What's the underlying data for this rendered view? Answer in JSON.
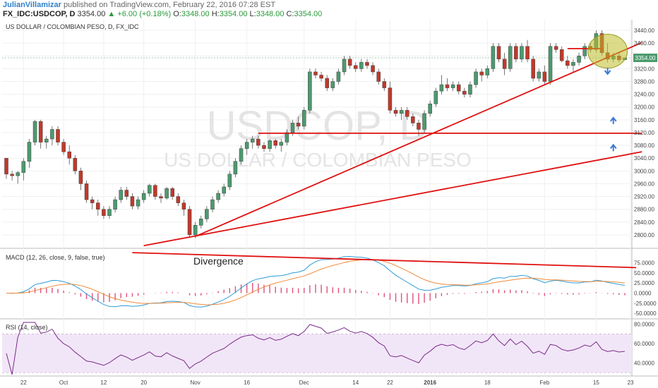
{
  "header": {
    "author": "JulianVillamizar",
    "published_text": "published on TradingView.com, February 22, 2016 07:28 EST",
    "symbol": "FX_IDC:USDCOP, D",
    "last": "3354.00",
    "change": "+6.00 (+0.18%)",
    "ohlc": [
      {
        "k": "O:",
        "v": "3348.00"
      },
      {
        "k": "H:",
        "v": "3354.00"
      },
      {
        "k": "L:",
        "v": "3348.00"
      },
      {
        "k": "C:",
        "v": "3354.00"
      }
    ]
  },
  "chart_data": {
    "type": "candlestick",
    "title": "US DOLLAR / COLOMBIAN PESO, D, FX_IDC",
    "watermark_symbol": "USDCOP, D",
    "watermark_name": "US DOLLAR / COLOMBIAN PESO",
    "last_price_label": "3354.00",
    "price_axis": {
      "min": 2760,
      "max": 3460,
      "ticks": [
        2800,
        2840,
        2880,
        2920,
        2960,
        3000,
        3040,
        3080,
        3120,
        3160,
        3200,
        3240,
        3280,
        3320,
        3360,
        3400,
        3440
      ],
      "tick_labels": [
        "2800.00",
        "2840.00",
        "2880.00",
        "2920.00",
        "2960.00",
        "3000.00",
        "3040.00",
        "3080.00",
        "3120.00",
        "3160.00",
        "3200.00",
        "3240.00",
        "3280.00",
        "3320.00",
        "3360.00",
        "3400.00",
        "3440.00"
      ]
    },
    "date_ticks": [
      {
        "i": 3,
        "label": "22"
      },
      {
        "i": 10,
        "label": "Oct"
      },
      {
        "i": 17,
        "label": "12"
      },
      {
        "i": 24,
        "label": "20"
      },
      {
        "i": 33,
        "label": "Nov"
      },
      {
        "i": 42,
        "label": "16"
      },
      {
        "i": 52,
        "label": "Dec"
      },
      {
        "i": 61,
        "label": "14"
      },
      {
        "i": 67,
        "label": "22"
      },
      {
        "i": 74,
        "label": "2016"
      },
      {
        "i": 84,
        "label": "18"
      },
      {
        "i": 94,
        "label": "Feb"
      },
      {
        "i": 103,
        "label": "15"
      },
      {
        "i": 109,
        "label": "23"
      }
    ],
    "candles": [
      [
        3040,
        3040,
        2975,
        2990
      ],
      [
        2990,
        3000,
        2970,
        2985
      ],
      [
        2985,
        3000,
        2960,
        2995
      ],
      [
        2995,
        3040,
        2970,
        3030
      ],
      [
        3030,
        3100,
        3010,
        3090
      ],
      [
        3090,
        3160,
        3080,
        3155
      ],
      [
        3155,
        3160,
        3070,
        3090
      ],
      [
        3090,
        3110,
        3070,
        3100
      ],
      [
        3100,
        3140,
        3080,
        3130
      ],
      [
        3130,
        3140,
        3080,
        3090
      ],
      [
        3090,
        3100,
        3050,
        3060
      ],
      [
        3060,
        3080,
        3020,
        3040
      ],
      [
        3040,
        3050,
        2990,
        3000
      ],
      [
        3000,
        3010,
        2940,
        2960
      ],
      [
        2960,
        2970,
        2900,
        2910
      ],
      [
        2910,
        2920,
        2880,
        2900
      ],
      [
        2900,
        2910,
        2860,
        2880
      ],
      [
        2880,
        2890,
        2850,
        2860
      ],
      [
        2860,
        2890,
        2850,
        2880
      ],
      [
        2880,
        2920,
        2870,
        2910
      ],
      [
        2910,
        2950,
        2900,
        2940
      ],
      [
        2940,
        2950,
        2910,
        2920
      ],
      [
        2920,
        2930,
        2880,
        2890
      ],
      [
        2890,
        2920,
        2880,
        2910
      ],
      [
        2910,
        2940,
        2900,
        2930
      ],
      [
        2930,
        2960,
        2920,
        2955
      ],
      [
        2955,
        2960,
        2910,
        2920
      ],
      [
        2920,
        2930,
        2900,
        2915
      ],
      [
        2915,
        2950,
        2910,
        2945
      ],
      [
        2945,
        2950,
        2910,
        2920
      ],
      [
        2920,
        2930,
        2890,
        2900
      ],
      [
        2900,
        2910,
        2860,
        2880
      ],
      [
        2880,
        2890,
        2790,
        2800
      ],
      [
        2800,
        2840,
        2790,
        2830
      ],
      [
        2830,
        2860,
        2820,
        2850
      ],
      [
        2850,
        2890,
        2840,
        2880
      ],
      [
        2880,
        2920,
        2870,
        2910
      ],
      [
        2910,
        2940,
        2900,
        2930
      ],
      [
        2930,
        2960,
        2920,
        2950
      ],
      [
        2950,
        3000,
        2940,
        2990
      ],
      [
        2990,
        3040,
        2980,
        3030
      ],
      [
        3030,
        3080,
        3020,
        3070
      ],
      [
        3070,
        3100,
        3050,
        3090
      ],
      [
        3090,
        3110,
        3070,
        3100
      ],
      [
        3100,
        3110,
        3070,
        3080
      ],
      [
        3080,
        3090,
        3060,
        3070
      ],
      [
        3070,
        3100,
        3060,
        3095
      ],
      [
        3095,
        3100,
        3070,
        3080
      ],
      [
        3080,
        3100,
        3060,
        3090
      ],
      [
        3090,
        3130,
        3080,
        3120
      ],
      [
        3120,
        3160,
        3110,
        3150
      ],
      [
        3150,
        3170,
        3130,
        3140
      ],
      [
        3140,
        3200,
        3130,
        3190
      ],
      [
        3190,
        3320,
        3180,
        3310
      ],
      [
        3310,
        3320,
        3290,
        3300
      ],
      [
        3300,
        3310,
        3280,
        3290
      ],
      [
        3290,
        3300,
        3250,
        3260
      ],
      [
        3260,
        3290,
        3250,
        3280
      ],
      [
        3280,
        3320,
        3270,
        3310
      ],
      [
        3310,
        3360,
        3300,
        3350
      ],
      [
        3350,
        3360,
        3320,
        3330
      ],
      [
        3330,
        3340,
        3310,
        3320
      ],
      [
        3320,
        3350,
        3310,
        3340
      ],
      [
        3340,
        3350,
        3320,
        3330
      ],
      [
        3330,
        3340,
        3300,
        3310
      ],
      [
        3310,
        3320,
        3270,
        3280
      ],
      [
        3280,
        3290,
        3250,
        3260
      ],
      [
        3260,
        3280,
        3180,
        3190
      ],
      [
        3190,
        3200,
        3170,
        3180
      ],
      [
        3180,
        3200,
        3160,
        3190
      ],
      [
        3190,
        3200,
        3160,
        3170
      ],
      [
        3170,
        3180,
        3140,
        3150
      ],
      [
        3150,
        3160,
        3110,
        3130
      ],
      [
        3130,
        3190,
        3120,
        3180
      ],
      [
        3180,
        3220,
        3170,
        3210
      ],
      [
        3210,
        3260,
        3200,
        3250
      ],
      [
        3250,
        3300,
        3240,
        3270
      ],
      [
        3270,
        3290,
        3250,
        3260
      ],
      [
        3260,
        3280,
        3250,
        3270
      ],
      [
        3270,
        3280,
        3240,
        3250
      ],
      [
        3250,
        3260,
        3230,
        3240
      ],
      [
        3240,
        3280,
        3230,
        3270
      ],
      [
        3270,
        3320,
        3260,
        3310
      ],
      [
        3310,
        3320,
        3280,
        3300
      ],
      [
        3300,
        3330,
        3290,
        3320
      ],
      [
        3320,
        3400,
        3310,
        3390
      ],
      [
        3390,
        3400,
        3340,
        3350
      ],
      [
        3350,
        3370,
        3300,
        3320
      ],
      [
        3320,
        3400,
        3310,
        3390
      ],
      [
        3390,
        3400,
        3340,
        3350
      ],
      [
        3350,
        3400,
        3340,
        3390
      ],
      [
        3390,
        3410,
        3340,
        3350
      ],
      [
        3350,
        3360,
        3280,
        3290
      ],
      [
        3290,
        3320,
        3280,
        3310
      ],
      [
        3310,
        3330,
        3270,
        3280
      ],
      [
        3280,
        3400,
        3270,
        3390
      ],
      [
        3390,
        3400,
        3370,
        3380
      ],
      [
        3380,
        3390,
        3340,
        3345
      ],
      [
        3345,
        3360,
        3320,
        3330
      ],
      [
        3330,
        3350,
        3310,
        3340
      ],
      [
        3340,
        3370,
        3330,
        3360
      ],
      [
        3360,
        3400,
        3350,
        3390
      ],
      [
        3390,
        3400,
        3370,
        3380
      ],
      [
        3380,
        3440,
        3370,
        3430
      ],
      [
        3430,
        3440,
        3360,
        3370
      ],
      [
        3370,
        3400,
        3340,
        3350
      ],
      [
        3350,
        3370,
        3340,
        3360
      ],
      [
        3360,
        3370,
        3340,
        3348
      ],
      [
        3348,
        3354,
        3348,
        3354
      ]
    ],
    "annotations": {
      "divergence_label": "Divergence"
    },
    "macd": {
      "title": "MACD (12, 26, close, 9, false, true)",
      "ylim": [
        -62,
        102
      ],
      "ticks": [
        75,
        50,
        25,
        0,
        -25,
        -50
      ],
      "tick_labels": [
        "75.0000",
        "50.0000",
        "25.0000",
        "0.0000",
        "-25.0000",
        "-50.0000"
      ]
    },
    "rsi": {
      "title": "RSI (14, close)",
      "ylim": [
        28,
        82
      ],
      "ticks": [
        80,
        60,
        40
      ],
      "tick_labels": [
        "80.0000",
        "60.0000",
        "40.0000"
      ],
      "band": [
        30,
        70
      ]
    },
    "colors": {
      "up": "#4c9a6e",
      "down": "#c0392b",
      "trend": "#e01010",
      "macd": "#2e9cd8",
      "signal": "#f08a3a",
      "hist": "#e0507a",
      "rsi": "#7a2a8a"
    }
  }
}
